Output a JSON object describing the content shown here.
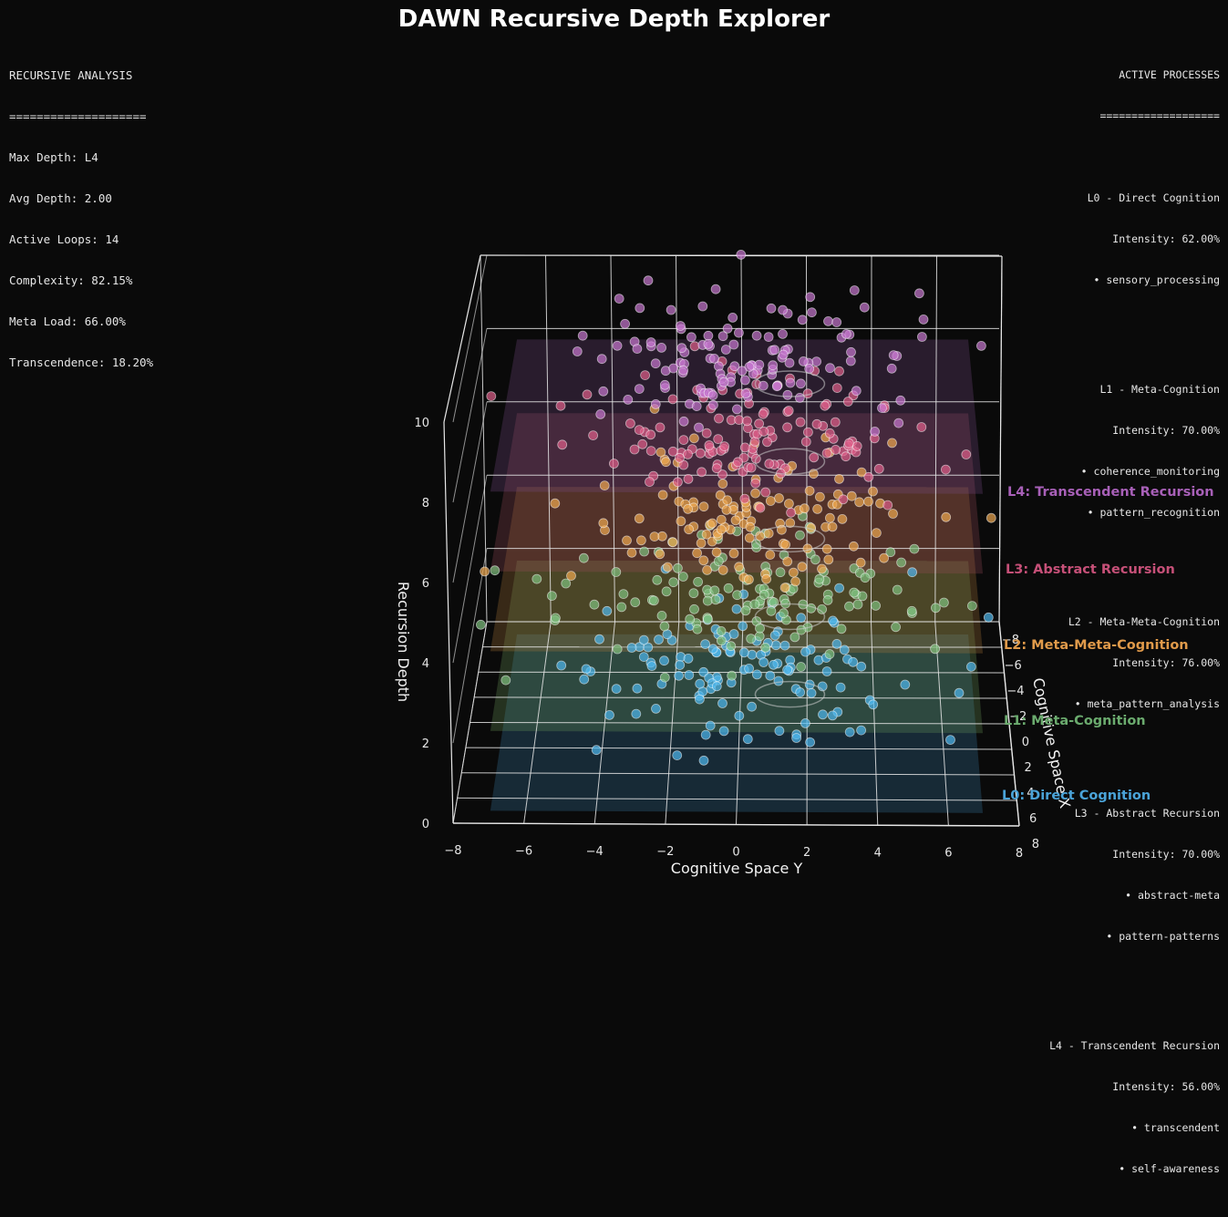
{
  "title": "DAWN Recursive Depth Explorer",
  "analysis": {
    "header": "RECURSIVE ANALYSIS",
    "rule": "====================",
    "lines": [
      "Max Depth: L4",
      "Avg Depth: 2.00",
      "Active Loops: 14",
      "Complexity: 82.15%",
      "Meta Load: 66.00%",
      "Transcendence: 18.20%"
    ]
  },
  "processes": {
    "header": "ACTIVE PROCESSES",
    "rule": "===================",
    "blocks": [
      {
        "title": "L0 - Direct Cognition",
        "intensity": "Intensity: 62.00%",
        "items": [
          "• sensory_processing"
        ]
      },
      {
        "title": "L1 - Meta-Cognition",
        "intensity": "Intensity: 70.00%",
        "items": [
          "• coherence_monitoring",
          "• pattern_recognition"
        ]
      },
      {
        "title": "L2 - Meta-Meta-Cognition",
        "intensity": "Intensity: 76.00%",
        "items": [
          "• meta_pattern_analysis"
        ]
      },
      {
        "title": "L3 - Abstract Recursion",
        "intensity": "Intensity: 70.00%",
        "items": [
          "• abstract-meta",
          "• pattern-patterns"
        ]
      },
      {
        "title": "L4 - Transcendent Recursion",
        "intensity": "Intensity: 56.00%",
        "items": [
          "• transcendent",
          "• self-awareness"
        ]
      }
    ]
  },
  "chart_data": {
    "type": "scatter",
    "projection": "3d",
    "xlabel": "Cognitive Space Y",
    "ylabel": "Cognitive Space X",
    "zlabel": "Recursion Depth",
    "xlim": [
      -8,
      8
    ],
    "ylim": [
      -8,
      8
    ],
    "zlim": [
      0,
      10
    ],
    "x_ticks": [
      "−8",
      "−6",
      "−4",
      "−2",
      "0",
      "2",
      "4",
      "6",
      "8"
    ],
    "y_ticks": [
      "−8",
      "−6",
      "−4",
      "−2",
      "0",
      "2",
      "4",
      "6",
      "8"
    ],
    "z_ticks": [
      "0",
      "2",
      "4",
      "6",
      "8",
      "10"
    ],
    "grid": true,
    "layers": [
      {
        "name": "L0: Direct Cognition",
        "depth": 0,
        "color": "#4aa3d8",
        "point_color": "#4fb8ee",
        "plane_color": "#3a7fa8"
      },
      {
        "name": "L1: Meta-Cognition",
        "depth": 2,
        "color": "#6bab6e",
        "point_color": "#7fc07f",
        "plane_color": "#6a9a5a"
      },
      {
        "name": "L2: Meta-Meta-Cognition",
        "depth": 4,
        "color": "#e09a4a",
        "point_color": "#f0a850",
        "plane_color": "#b07a3a"
      },
      {
        "name": "L3: Abstract Recursion",
        "depth": 6,
        "color": "#c65078",
        "point_color": "#e0608a",
        "plane_color": "#9a4a5a"
      },
      {
        "name": "L4: Transcendent Recursion",
        "depth": 8,
        "color": "#a860b8",
        "point_color": "#c878d0",
        "plane_color": "#7a4a8a"
      }
    ]
  }
}
